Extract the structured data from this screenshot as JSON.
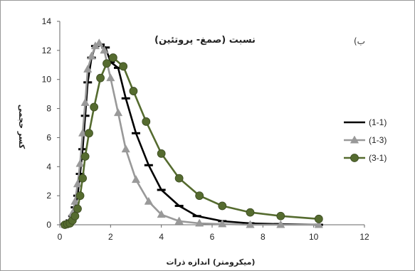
{
  "chart_data": {
    "type": "line",
    "title": "نسبت (صمغ- پروتئین)",
    "panel_label": "ب)",
    "xlabel": "(میکرومتر) اندازه ذرات",
    "ylabel": "کسر حجمی",
    "xlim": [
      0,
      12
    ],
    "ylim": [
      0,
      14
    ],
    "x_ticks": [
      "0",
      "2",
      "4",
      "6",
      "8",
      "10",
      "12"
    ],
    "y_ticks": [
      "0",
      "2",
      "4",
      "6",
      "8",
      "10",
      "12",
      "14"
    ],
    "grid": false,
    "legend_position": "right",
    "series": [
      {
        "name": "(1-1)",
        "color": "#000000",
        "marker": "dash",
        "x": [
          0.2,
          0.3,
          0.4,
          0.5,
          0.6,
          0.7,
          0.8,
          0.9,
          1.0,
          1.1,
          1.25,
          1.4,
          1.6,
          1.8,
          2.0,
          2.3,
          2.6,
          3.0,
          3.5,
          4.0,
          4.7,
          5.4,
          6.4,
          7.5,
          8.6,
          10.2
        ],
        "y": [
          0.05,
          0.1,
          0.3,
          0.6,
          1.2,
          2.0,
          3.5,
          5.2,
          7.5,
          9.8,
          11.5,
          12.3,
          12.4,
          12.2,
          11.2,
          10.8,
          8.7,
          6.3,
          4.1,
          2.4,
          1.3,
          0.6,
          0.25,
          0.1,
          0.05,
          0.0
        ]
      },
      {
        "name": "(1-3)",
        "color": "#999999",
        "marker": "triangle",
        "x": [
          0.2,
          0.3,
          0.4,
          0.5,
          0.6,
          0.7,
          0.8,
          0.9,
          1.0,
          1.1,
          1.25,
          1.4,
          1.55,
          1.75,
          2.0,
          2.3,
          2.6,
          3.0,
          3.5,
          4.0,
          4.7,
          5.5,
          6.4,
          7.5,
          8.7,
          10.2
        ],
        "y": [
          0.0,
          0.1,
          0.3,
          0.8,
          1.6,
          2.8,
          4.2,
          6.3,
          8.4,
          10.7,
          11.6,
          12.3,
          12.5,
          12.0,
          10.1,
          7.7,
          5.2,
          3.1,
          1.6,
          0.7,
          0.25,
          0.1,
          0.05,
          0.0,
          0.0,
          0.0
        ]
      },
      {
        "name": "(3-1)",
        "color": "#556b2f",
        "marker": "circle",
        "x": [
          0.2,
          0.3,
          0.4,
          0.5,
          0.6,
          0.7,
          0.8,
          0.9,
          1.0,
          1.15,
          1.35,
          1.6,
          1.85,
          2.1,
          2.5,
          2.9,
          3.4,
          4.0,
          4.7,
          5.5,
          6.4,
          7.5,
          8.7,
          10.2
        ],
        "y": [
          0.0,
          0.05,
          0.1,
          0.3,
          0.6,
          1.1,
          2.0,
          3.2,
          4.7,
          6.3,
          8.1,
          10.1,
          11.1,
          11.5,
          10.9,
          9.2,
          7.1,
          4.9,
          3.2,
          2.0,
          1.3,
          0.85,
          0.6,
          0.4
        ]
      }
    ]
  }
}
